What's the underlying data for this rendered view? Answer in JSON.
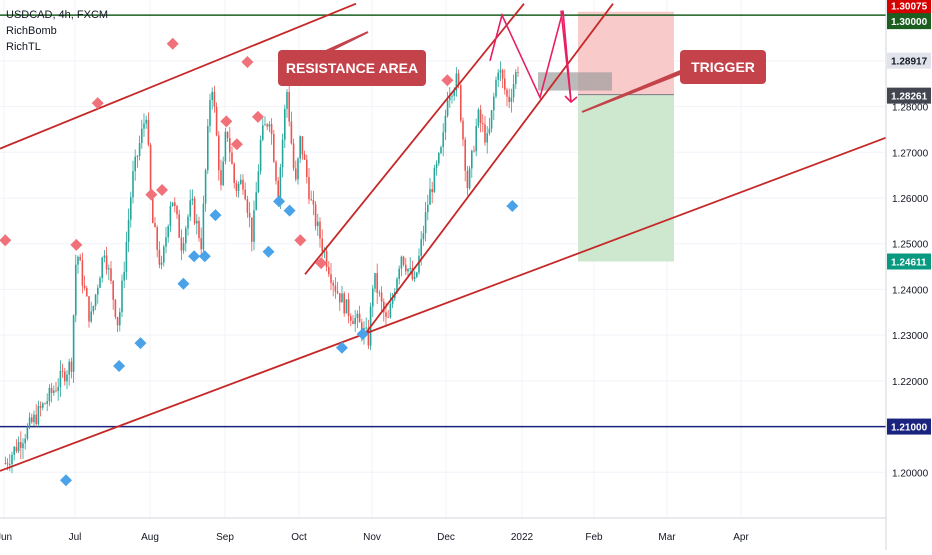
{
  "header": {
    "symbol_line": "USDCAD, 4h, FXCM",
    "indicators": [
      "RichBomb",
      "RichTL"
    ]
  },
  "annotations": {
    "resistance_label": "RESISTANCE AREA",
    "trigger_label": "TRIGGER"
  },
  "colors": {
    "up_candle": "#26a69a",
    "down_candle": "#ef5350",
    "channel_line": "#c62828",
    "diamond_top": "#f07179",
    "diamond_bottom": "#4aa3e8",
    "label_box": "#c4424a",
    "resistance_line": "#1b5e20",
    "support_line": "#1a237e",
    "projection": "#e91e63",
    "stop_zone": "#f8c1c1",
    "target_zone": "#c8e6c9"
  },
  "chart_data": {
    "type": "candlestick",
    "title": "USDCAD, 4h, FXCM",
    "xlabel": "",
    "ylabel": "",
    "x_ticks": [
      "Jun",
      "Jul",
      "Aug",
      "Sep",
      "Oct",
      "Nov",
      "Dec",
      "2022",
      "Feb",
      "Mar",
      "Apr"
    ],
    "y_ticks": [
      1.2,
      1.21,
      1.22,
      1.23,
      1.24,
      1.25,
      1.26,
      1.27,
      1.28,
      1.29
    ],
    "ylim": [
      1.19,
      1.302
    ],
    "price_badges": [
      {
        "label": "1.30075",
        "value": 1.30075,
        "color": "#d50000"
      },
      {
        "label": "1.30000",
        "value": 1.3,
        "color": "#1b5e20"
      },
      {
        "label": "1.28917",
        "value": 1.28917,
        "color": "#e0e3eb"
      },
      {
        "label": "1.28261",
        "value": 1.28261,
        "color": "#434651"
      },
      {
        "label": "1.24611",
        "value": 1.24611,
        "color": "#089981"
      },
      {
        "label": "1.21000",
        "value": 1.21,
        "color": "#1a237e"
      }
    ],
    "horizontal_levels": [
      {
        "name": "resistance",
        "value": 1.3
      },
      {
        "name": "support",
        "value": 1.21
      }
    ],
    "trade_setup": {
      "entry": 1.28261,
      "stop": 1.30075,
      "target": 1.24611
    },
    "anchor_points": [
      {
        "date": "Jun",
        "value": 1.202
      },
      {
        "date": "Jun",
        "value": 1.224
      },
      {
        "date": "Jul",
        "value": 1.249
      },
      {
        "date": "Jul",
        "value": 1.233
      },
      {
        "date": "Jul",
        "value": 1.249
      },
      {
        "date": "Jul",
        "value": 1.232
      },
      {
        "date": "Jul",
        "value": 1.264
      },
      {
        "date": "Jul",
        "value": 1.279
      },
      {
        "date": "Aug",
        "value": 1.256
      },
      {
        "date": "Aug",
        "value": 1.244
      },
      {
        "date": "Aug",
        "value": 1.261
      },
      {
        "date": "Aug",
        "value": 1.25
      },
      {
        "date": "Aug",
        "value": 1.259
      },
      {
        "date": "Aug",
        "value": 1.25
      },
      {
        "date": "Aug",
        "value": 1.287
      },
      {
        "date": "Aug",
        "value": 1.261
      },
      {
        "date": "Sep",
        "value": 1.276
      },
      {
        "date": "Sep",
        "value": 1.262
      },
      {
        "date": "Sep",
        "value": 1.264
      },
      {
        "date": "Sep",
        "value": 1.251
      },
      {
        "date": "Sep",
        "value": 1.273
      },
      {
        "date": "Sep",
        "value": 1.278
      },
      {
        "date": "Sep",
        "value": 1.261
      },
      {
        "date": "Sep",
        "value": 1.284
      },
      {
        "date": "Sep",
        "value": 1.262
      },
      {
        "date": "Oct",
        "value": 1.273
      },
      {
        "date": "Oct",
        "value": 1.258
      },
      {
        "date": "Oct",
        "value": 1.249
      },
      {
        "date": "Oct",
        "value": 1.241
      },
      {
        "date": "Oct",
        "value": 1.236
      },
      {
        "date": "Oct",
        "value": 1.233
      },
      {
        "date": "Oct",
        "value": 1.229
      },
      {
        "date": "Nov",
        "value": 1.243
      },
      {
        "date": "Nov",
        "value": 1.232
      },
      {
        "date": "Nov",
        "value": 1.248
      },
      {
        "date": "Nov",
        "value": 1.241
      },
      {
        "date": "Nov",
        "value": 1.26
      },
      {
        "date": "Nov",
        "value": 1.271
      },
      {
        "date": "Dec",
        "value": 1.283
      },
      {
        "date": "Dec",
        "value": 1.286
      },
      {
        "date": "Dec",
        "value": 1.262
      },
      {
        "date": "Dec",
        "value": 1.278
      },
      {
        "date": "Dec",
        "value": 1.272
      },
      {
        "date": "Dec",
        "value": 1.289
      },
      {
        "date": "Dec",
        "value": 1.281
      },
      {
        "date": "Dec",
        "value": 1.289
      }
    ],
    "markers": [
      {
        "kind": "top",
        "date": "Jun",
        "value": 1.249
      },
      {
        "kind": "top",
        "date": "Jul",
        "value": 1.248
      },
      {
        "kind": "top",
        "date": "Jul",
        "value": 1.279
      },
      {
        "kind": "top",
        "date": "Aug",
        "value": 1.259
      },
      {
        "kind": "top",
        "date": "Aug",
        "value": 1.26
      },
      {
        "kind": "top",
        "date": "Aug",
        "value": 1.292
      },
      {
        "kind": "top",
        "date": "Sep",
        "value": 1.275
      },
      {
        "kind": "top",
        "date": "Sep",
        "value": 1.27
      },
      {
        "kind": "top",
        "date": "Sep",
        "value": 1.288
      },
      {
        "kind": "top",
        "date": "Sep",
        "value": 1.276
      },
      {
        "kind": "top",
        "date": "Oct",
        "value": 1.249
      },
      {
        "kind": "top",
        "date": "Oct",
        "value": 1.244
      },
      {
        "kind": "top",
        "date": "Dec",
        "value": 1.284
      },
      {
        "kind": "bottom",
        "date": "Jun",
        "value": 1.2
      },
      {
        "kind": "bottom",
        "date": "Jul",
        "value": 1.225
      },
      {
        "kind": "bottom",
        "date": "Jul",
        "value": 1.23
      },
      {
        "kind": "bottom",
        "date": "Aug",
        "value": 1.243
      },
      {
        "kind": "bottom",
        "date": "Aug",
        "value": 1.249
      },
      {
        "kind": "bottom",
        "date": "Aug",
        "value": 1.249
      },
      {
        "kind": "bottom",
        "date": "Aug",
        "value": 1.258
      },
      {
        "kind": "bottom",
        "date": "Sep",
        "value": 1.25
      },
      {
        "kind": "bottom",
        "date": "Sep",
        "value": 1.261
      },
      {
        "kind": "bottom",
        "date": "Sep",
        "value": 1.259
      },
      {
        "kind": "bottom",
        "date": "Oct",
        "value": 1.229
      },
      {
        "kind": "bottom",
        "date": "Oct",
        "value": 1.232
      },
      {
        "kind": "bottom",
        "date": "Dec",
        "value": 1.26
      }
    ],
    "projection_path": [
      {
        "date": "Dec",
        "value": 1.29
      },
      {
        "date": "2022",
        "value": 1.3
      },
      {
        "date": "2022",
        "value": 1.282
      },
      {
        "date": "Feb",
        "value": 1.301
      },
      {
        "date": "Feb",
        "value": 1.281
      }
    ]
  }
}
